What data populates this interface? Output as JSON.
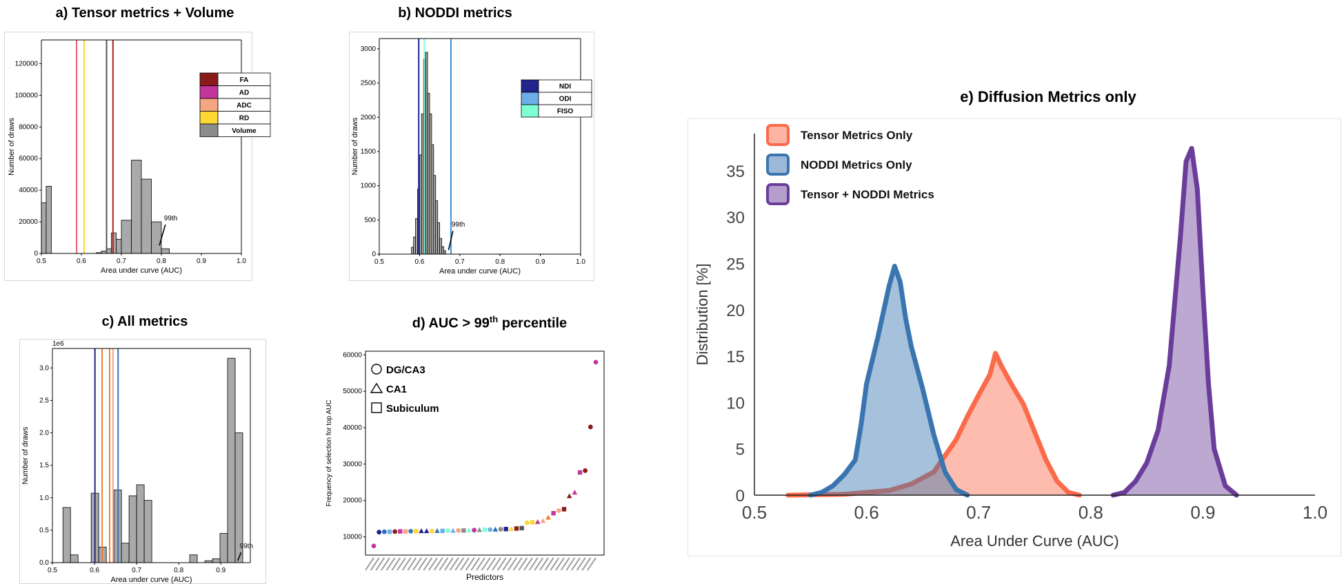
{
  "colors": {
    "FA": "#8b1a1a",
    "AD": "#c2369b",
    "ADC": "#f4a582",
    "RD": "#fdd835",
    "Volume": "#8c8c8c",
    "NDI": "#23238e",
    "ODI": "#6baee8",
    "FISO": "#7fffd4",
    "tensor": "#fb6a4a",
    "noddi": "#3a75b0",
    "combined": "#6a3d9a",
    "hist_fill": "#a9a9a9"
  },
  "chart_data": [
    {
      "id": "a",
      "type": "bar",
      "title": "a) Tensor metrics + Volume",
      "xlabel": "Area under curve (AUC)",
      "ylabel": "Number of draws",
      "xlim": [
        0.5,
        1.0
      ],
      "ylim": [
        0,
        135000
      ],
      "xticks": [
        "0.5",
        "0.6",
        "0.7",
        "0.8",
        "0.9",
        "1.0"
      ],
      "yticks": [
        "0",
        "20000",
        "40000",
        "60000",
        "80000",
        "100000",
        "120000"
      ],
      "bins": [
        {
          "x0": 0.5,
          "x1": 0.512,
          "value": 32000
        },
        {
          "x0": 0.512,
          "x1": 0.525,
          "value": 42500
        },
        {
          "x0": 0.637,
          "x1": 0.65,
          "value": 500
        },
        {
          "x0": 0.65,
          "x1": 0.662,
          "value": 1500
        },
        {
          "x0": 0.662,
          "x1": 0.675,
          "value": 3000
        },
        {
          "x0": 0.675,
          "x1": 0.687,
          "value": 13000
        },
        {
          "x0": 0.687,
          "x1": 0.7,
          "value": 9000
        },
        {
          "x0": 0.7,
          "x1": 0.725,
          "value": 21000
        },
        {
          "x0": 0.725,
          "x1": 0.75,
          "value": 59000
        },
        {
          "x0": 0.75,
          "x1": 0.775,
          "value": 47000
        },
        {
          "x0": 0.775,
          "x1": 0.8,
          "value": 20000
        },
        {
          "x0": 0.8,
          "x1": 0.82,
          "value": 3000
        }
      ],
      "vlines": [
        {
          "x": 0.588,
          "color": "#e8626e"
        },
        {
          "x": 0.607,
          "color": "#fdd835"
        },
        {
          "x": 0.663,
          "color": "#555555"
        },
        {
          "x": 0.679,
          "color": "#b01c1c"
        }
      ],
      "legend": [
        "FA",
        "AD",
        "ADC",
        "RD",
        "Volume"
      ],
      "annotation": {
        "text": "99th",
        "x": 0.81,
        "y": 20000,
        "ax": 0.795,
        "ay": 5000
      }
    },
    {
      "id": "b",
      "type": "bar",
      "title": "b) NODDI metrics",
      "xlabel": "Area under curve (AUC)",
      "ylabel": "Number of draws",
      "xlim": [
        0.5,
        1.0
      ],
      "ylim": [
        0,
        3150
      ],
      "xticks": [
        "0.5",
        "0.6",
        "0.7",
        "0.8",
        "0.9",
        "1.0"
      ],
      "yticks": [
        "0",
        "500",
        "1000",
        "1500",
        "2000",
        "2500",
        "3000"
      ],
      "bins": [
        {
          "x0": 0.58,
          "x1": 0.585,
          "value": 100
        },
        {
          "x0": 0.585,
          "x1": 0.59,
          "value": 250
        },
        {
          "x0": 0.59,
          "x1": 0.595,
          "value": 520
        },
        {
          "x0": 0.595,
          "x1": 0.6,
          "value": 950
        },
        {
          "x0": 0.6,
          "x1": 0.605,
          "value": 1450
        },
        {
          "x0": 0.605,
          "x1": 0.61,
          "value": 2050
        },
        {
          "x0": 0.61,
          "x1": 0.615,
          "value": 2850
        },
        {
          "x0": 0.615,
          "x1": 0.62,
          "value": 2950
        },
        {
          "x0": 0.62,
          "x1": 0.625,
          "value": 2350
        },
        {
          "x0": 0.625,
          "x1": 0.63,
          "value": 2050
        },
        {
          "x0": 0.63,
          "x1": 0.635,
          "value": 1600
        },
        {
          "x0": 0.635,
          "x1": 0.64,
          "value": 1150
        },
        {
          "x0": 0.64,
          "x1": 0.645,
          "value": 780
        },
        {
          "x0": 0.645,
          "x1": 0.65,
          "value": 460
        },
        {
          "x0": 0.65,
          "x1": 0.655,
          "value": 230
        },
        {
          "x0": 0.655,
          "x1": 0.66,
          "value": 110
        },
        {
          "x0": 0.66,
          "x1": 0.665,
          "value": 50
        }
      ],
      "vlines": [
        {
          "x": 0.598,
          "color": "#23238e"
        },
        {
          "x": 0.612,
          "color": "#7fffd4"
        },
        {
          "x": 0.678,
          "color": "#3a8fd6"
        }
      ],
      "legend": [
        "NDI",
        "ODI",
        "FISO"
      ],
      "annotation": {
        "text": "99th",
        "x": 0.683,
        "y": 380,
        "ax": 0.672,
        "ay": 60
      }
    },
    {
      "id": "c",
      "type": "bar",
      "title": "c) All metrics",
      "xlabel": "Area under curve (AUC)",
      "ylabel": "Number of draws",
      "scale_label": "1e6",
      "xlim": [
        0.5,
        0.97
      ],
      "ylim": [
        0,
        3.3
      ],
      "xticks": [
        "0.5",
        "0.6",
        "0.7",
        "0.8",
        "0.9"
      ],
      "yticks": [
        "0.0",
        "0.5",
        "1.0",
        "1.5",
        "2.0",
        "2.5",
        "3.0"
      ],
      "bins": [
        {
          "x0": 0.525,
          "x1": 0.543,
          "value": 0.85
        },
        {
          "x0": 0.543,
          "x1": 0.561,
          "value": 0.12
        },
        {
          "x0": 0.592,
          "x1": 0.61,
          "value": 1.07
        },
        {
          "x0": 0.61,
          "x1": 0.628,
          "value": 0.24
        },
        {
          "x0": 0.646,
          "x1": 0.664,
          "value": 1.12
        },
        {
          "x0": 0.664,
          "x1": 0.682,
          "value": 0.3
        },
        {
          "x0": 0.682,
          "x1": 0.7,
          "value": 1.03
        },
        {
          "x0": 0.7,
          "x1": 0.718,
          "value": 1.2
        },
        {
          "x0": 0.718,
          "x1": 0.736,
          "value": 0.96
        },
        {
          "x0": 0.826,
          "x1": 0.844,
          "value": 0.12
        },
        {
          "x0": 0.862,
          "x1": 0.88,
          "value": 0.03
        },
        {
          "x0": 0.88,
          "x1": 0.898,
          "value": 0.06
        },
        {
          "x0": 0.898,
          "x1": 0.916,
          "value": 0.45
        },
        {
          "x0": 0.916,
          "x1": 0.934,
          "value": 3.15
        },
        {
          "x0": 0.934,
          "x1": 0.952,
          "value": 2.0
        }
      ],
      "vlines": [
        {
          "x": 0.601,
          "color": "#23238e"
        },
        {
          "x": 0.618,
          "color": "#f08030"
        },
        {
          "x": 0.636,
          "color": "#f08030"
        },
        {
          "x": 0.644,
          "color": "#f4a582"
        },
        {
          "x": 0.656,
          "color": "#3a75b0"
        }
      ],
      "annotation": {
        "text": "99th",
        "x": 0.948,
        "y": 0.2,
        "ax": 0.94,
        "ay": 0.03
      }
    },
    {
      "id": "d",
      "type": "scatter",
      "title_main": "d) AUC  > 99",
      "title_sup": "th",
      "title_end": " percentile",
      "xlabel": "Predictors",
      "ylabel": "Frequency of selection for top AUC",
      "ylim": [
        5000,
        61000
      ],
      "yticks": [
        "10000",
        "20000",
        "30000",
        "40000",
        "50000",
        "60000"
      ],
      "legend": [
        "DG/CA3",
        "CA1",
        "Subiculum"
      ],
      "points": [
        {
          "y": 7500,
          "shape": "circle",
          "color": "#c2369b"
        },
        {
          "y": 11300,
          "shape": "circle",
          "color": "#23238e"
        },
        {
          "y": 11400,
          "shape": "circle",
          "color": "#2c6eb8"
        },
        {
          "y": 11400,
          "shape": "square",
          "color": "#6baee8"
        },
        {
          "y": 11450,
          "shape": "circle",
          "color": "#8b1a1a"
        },
        {
          "y": 11500,
          "shape": "square",
          "color": "#c2369b"
        },
        {
          "y": 11500,
          "shape": "square",
          "color": "#f4a582"
        },
        {
          "y": 11550,
          "shape": "circle",
          "color": "#3a75b0"
        },
        {
          "y": 11550,
          "shape": "square",
          "color": "#fdd835"
        },
        {
          "y": 11600,
          "shape": "triangle",
          "color": "#23238e"
        },
        {
          "y": 11600,
          "shape": "triangle",
          "color": "#23238e"
        },
        {
          "y": 11600,
          "shape": "circle",
          "color": "#fdd835"
        },
        {
          "y": 11650,
          "shape": "triangle",
          "color": "#3a75b0"
        },
        {
          "y": 11650,
          "shape": "square",
          "color": "#6baee8"
        },
        {
          "y": 11700,
          "shape": "circle",
          "color": "#7fffd4"
        },
        {
          "y": 11700,
          "shape": "triangle",
          "color": "#6baee8"
        },
        {
          "y": 11750,
          "shape": "circle",
          "color": "#f4a582"
        },
        {
          "y": 11750,
          "shape": "square",
          "color": "#8c8c8c"
        },
        {
          "y": 11800,
          "shape": "triangle",
          "color": "#7fffd4"
        },
        {
          "y": 11850,
          "shape": "circle",
          "color": "#c2369b"
        },
        {
          "y": 11900,
          "shape": "triangle",
          "color": "#8c8c8c"
        },
        {
          "y": 11950,
          "shape": "square",
          "color": "#7fffd4"
        },
        {
          "y": 12000,
          "shape": "circle",
          "color": "#6baee8"
        },
        {
          "y": 12050,
          "shape": "triangle",
          "color": "#2c6eb8"
        },
        {
          "y": 12100,
          "shape": "circle",
          "color": "#8c8c8c"
        },
        {
          "y": 12150,
          "shape": "square",
          "color": "#23238e"
        },
        {
          "y": 12200,
          "shape": "triangle",
          "color": "#fdd835"
        },
        {
          "y": 12300,
          "shape": "square",
          "color": "#8b1a1a"
        },
        {
          "y": 12400,
          "shape": "square",
          "color": "#555555"
        },
        {
          "y": 13900,
          "shape": "circle",
          "color": "#fdd835"
        },
        {
          "y": 14000,
          "shape": "square",
          "color": "#fdd835"
        },
        {
          "y": 14100,
          "shape": "triangle",
          "color": "#c2369b"
        },
        {
          "y": 14400,
          "shape": "triangle",
          "color": "#f4a582"
        },
        {
          "y": 15300,
          "shape": "triangle",
          "color": "#f08030"
        },
        {
          "y": 16500,
          "shape": "square",
          "color": "#c2369b"
        },
        {
          "y": 17200,
          "shape": "circle",
          "color": "#f4a582"
        },
        {
          "y": 17600,
          "shape": "square",
          "color": "#8b1a1a"
        },
        {
          "y": 21200,
          "shape": "triangle",
          "color": "#8b1a1a"
        },
        {
          "y": 22200,
          "shape": "triangle",
          "color": "#c2369b"
        },
        {
          "y": 27700,
          "shape": "square",
          "color": "#c2369b"
        },
        {
          "y": 28200,
          "shape": "circle",
          "color": "#8b1a1a"
        },
        {
          "y": 40200,
          "shape": "circle",
          "color": "#8b1a1a"
        },
        {
          "y": 58000,
          "shape": "circle",
          "color": "#c2369b"
        }
      ]
    },
    {
      "id": "e",
      "type": "area",
      "title": "e) Diffusion Metrics only",
      "xlabel": "Area Under Curve (AUC)",
      "ylabel": "Distribution [%]",
      "xlim": [
        0.5,
        1.0
      ],
      "ylim": [
        0,
        39
      ],
      "xticks": [
        "0.5",
        "0.6",
        "0.7",
        "0.8",
        "0.9",
        "1.0"
      ],
      "yticks": [
        "0",
        "5",
        "10",
        "15",
        "20",
        "25",
        "30",
        "35"
      ],
      "series": [
        {
          "name": "Tensor Metrics Only",
          "color_key": "tensor",
          "x": [
            0.53,
            0.58,
            0.62,
            0.64,
            0.66,
            0.68,
            0.69,
            0.7,
            0.71,
            0.715,
            0.72,
            0.73,
            0.74,
            0.75,
            0.76,
            0.77,
            0.78,
            0.79
          ],
          "y": [
            0,
            0.1,
            0.5,
            1.2,
            2.5,
            6.0,
            8.5,
            10.8,
            13.0,
            15.3,
            14.0,
            11.8,
            9.8,
            6.8,
            3.8,
            1.5,
            0.3,
            0
          ]
        },
        {
          "name": "NODDI Metrics Only",
          "color_key": "noddi",
          "x": [
            0.55,
            0.56,
            0.57,
            0.58,
            0.59,
            0.595,
            0.6,
            0.61,
            0.62,
            0.625,
            0.63,
            0.635,
            0.64,
            0.65,
            0.66,
            0.67,
            0.68,
            0.69
          ],
          "y": [
            0,
            0.3,
            1.0,
            2.2,
            3.8,
            7.5,
            12.0,
            17.0,
            22.5,
            24.7,
            23.0,
            19.0,
            16.0,
            11.5,
            6.5,
            2.5,
            0.6,
            0
          ]
        },
        {
          "name": "Tensor + NODDI Metrics",
          "color_key": "combined",
          "x": [
            0.82,
            0.83,
            0.84,
            0.85,
            0.86,
            0.87,
            0.88,
            0.885,
            0.89,
            0.895,
            0.9,
            0.905,
            0.91,
            0.92,
            0.93
          ],
          "y": [
            0,
            0.3,
            1.5,
            3.5,
            7.0,
            14.0,
            28.0,
            36.0,
            37.4,
            33.0,
            22.0,
            12.0,
            5.0,
            1.0,
            0
          ]
        }
      ]
    }
  ]
}
